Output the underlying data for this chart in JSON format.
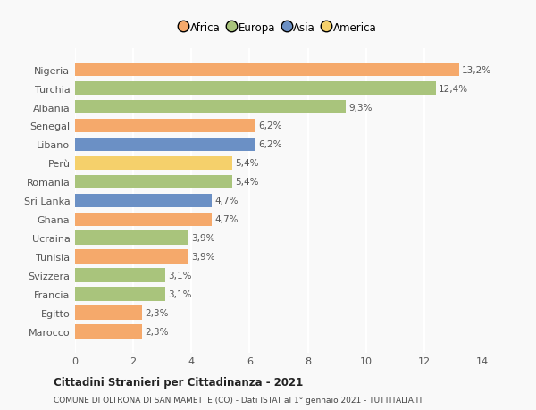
{
  "countries": [
    "Marocco",
    "Egitto",
    "Francia",
    "Svizzera",
    "Tunisia",
    "Ucraina",
    "Ghana",
    "Sri Lanka",
    "Romania",
    "Perù",
    "Libano",
    "Senegal",
    "Albania",
    "Turchia",
    "Nigeria"
  ],
  "values": [
    2.3,
    2.3,
    3.1,
    3.1,
    3.9,
    3.9,
    4.7,
    4.7,
    5.4,
    5.4,
    6.2,
    6.2,
    9.3,
    12.4,
    13.2
  ],
  "labels": [
    "2,3%",
    "2,3%",
    "3,1%",
    "3,1%",
    "3,9%",
    "3,9%",
    "4,7%",
    "4,7%",
    "5,4%",
    "5,4%",
    "6,2%",
    "6,2%",
    "9,3%",
    "12,4%",
    "13,2%"
  ],
  "continents": [
    "Africa",
    "Africa",
    "Europa",
    "Europa",
    "Africa",
    "Europa",
    "Africa",
    "Asia",
    "Europa",
    "America",
    "Asia",
    "Africa",
    "Europa",
    "Europa",
    "Africa"
  ],
  "colors": {
    "Africa": "#F5A96B",
    "Europa": "#A9C47C",
    "Asia": "#6B90C5",
    "America": "#F5D06B"
  },
  "legend_order": [
    "Africa",
    "Europa",
    "Asia",
    "America"
  ],
  "xlim": [
    0,
    14
  ],
  "xticks": [
    0,
    2,
    4,
    6,
    8,
    10,
    12,
    14
  ],
  "title1": "Cittadini Stranieri per Cittadinanza - 2021",
  "title2": "COMUNE DI OLTRONA DI SAN MAMETTE (CO) - Dati ISTAT al 1° gennaio 2021 - TUTTITALIA.IT",
  "bg_color": "#f9f9f9",
  "bar_height": 0.75,
  "grid_color": "#ffffff",
  "tick_label_color": "#555555",
  "value_label_color": "#555555"
}
